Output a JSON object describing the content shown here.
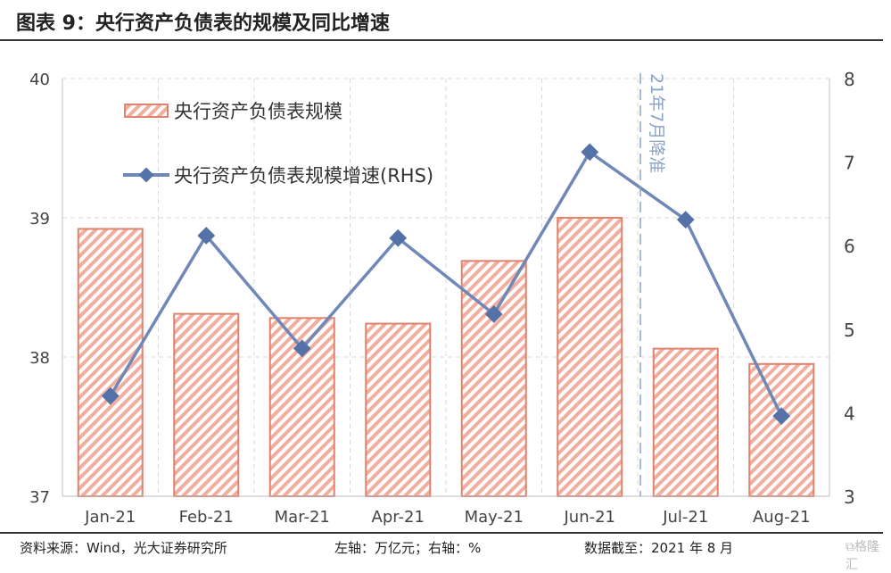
{
  "title": "图表 9：央行资产负债表的规模及同比增速",
  "footer": {
    "source": "资料来源：Wind，光大证券研究所",
    "units": "左轴：万亿元；右轴：%",
    "date": "数据截至：2021 年 8 月",
    "watermark": "格隆汇"
  },
  "colors": {
    "bar": "#e8907c",
    "line": "#6f88b8",
    "marker": "#5572a8",
    "grid": "#d9d9d9",
    "annotation_line": "#8aa4c8"
  },
  "chart_data": {
    "type": "bar+line",
    "categories": [
      "Jan-21",
      "Feb-21",
      "Mar-21",
      "Apr-21",
      "May-21",
      "Jun-21",
      "Jul-21",
      "Aug-21"
    ],
    "series": [
      {
        "name": "央行资产负债表规模",
        "type": "bar",
        "axis": "left",
        "pattern": "diagonal-hatch",
        "values": [
          38.92,
          38.31,
          38.28,
          38.24,
          38.69,
          39.0,
          38.06,
          37.95
        ]
      },
      {
        "name": "央行资产负债表规模增速(RHS)",
        "type": "line",
        "axis": "right",
        "marker": "diamond",
        "values": [
          4.2,
          6.12,
          4.77,
          6.09,
          5.18,
          7.12,
          6.31,
          3.96
        ]
      }
    ],
    "y_left": {
      "range": [
        37,
        40
      ],
      "ticks": [
        "37",
        "38",
        "39",
        "40"
      ]
    },
    "y_right": {
      "range": [
        3,
        8
      ],
      "ticks": [
        "3",
        "4",
        "5",
        "6",
        "7",
        "8"
      ]
    },
    "annotation": {
      "text": "21年7月降准",
      "position": "between Jun-21 and Jul-21"
    },
    "grid": true,
    "legend_placement": "top-left"
  }
}
